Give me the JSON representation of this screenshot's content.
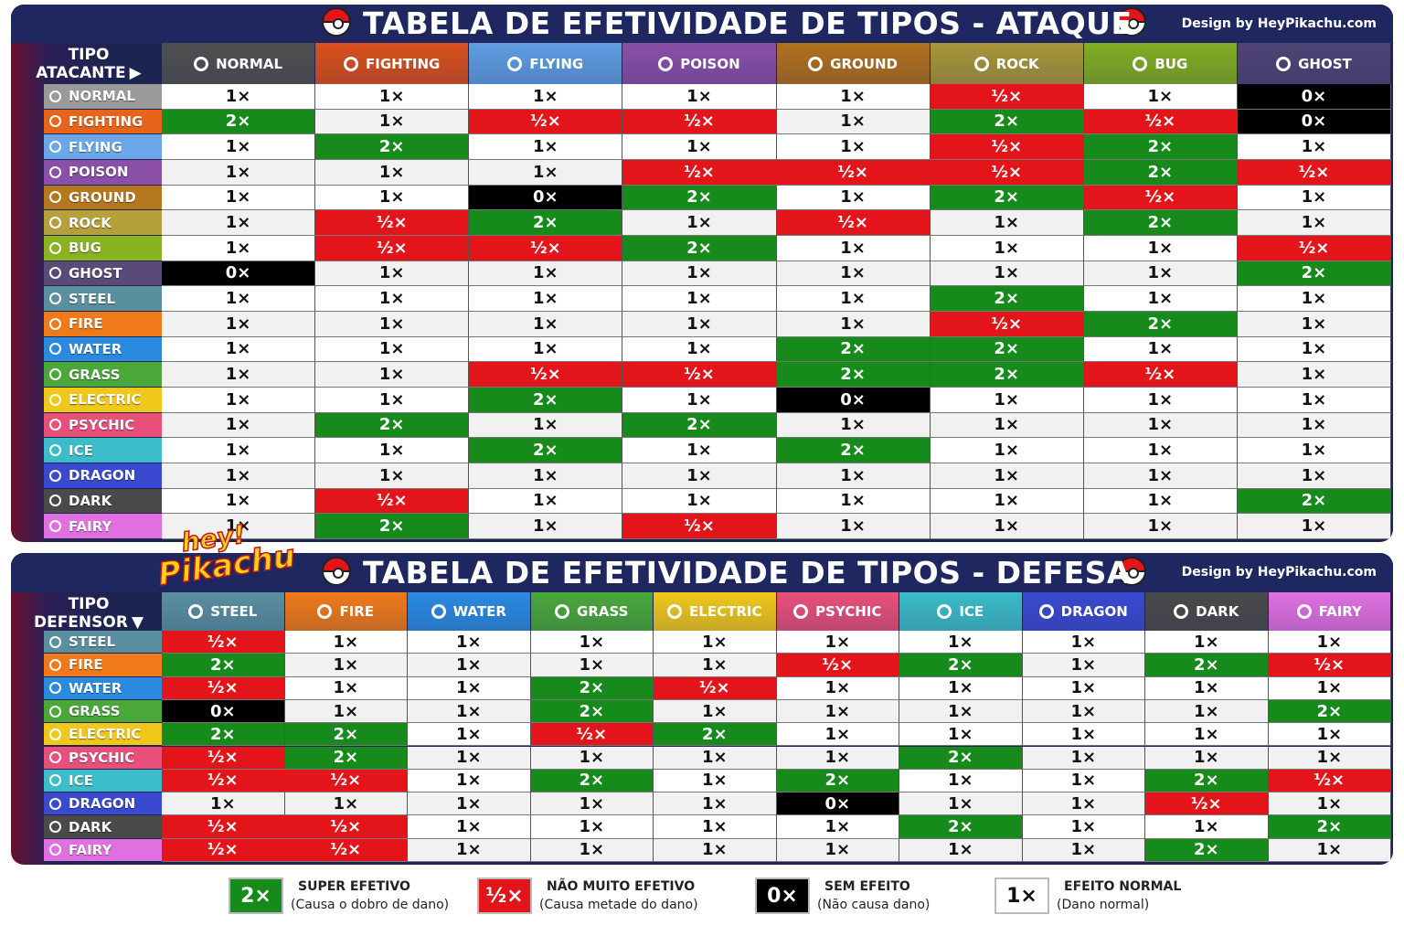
{
  "top": {
    "title": "TABELA DE EFETIVIDADE DE TIPOS - ATAQUE",
    "credit": "Design by HeyPikachu.com",
    "corner": [
      "TIPO",
      "ATACANTE"
    ],
    "columns": [
      {
        "label": "NORMAL",
        "color": "#505050"
      },
      {
        "label": "FIGHTING",
        "color": "#d9501c"
      },
      {
        "label": "FLYING",
        "color": "#5f9de0"
      },
      {
        "label": "POISON",
        "color": "#8a4fa8"
      },
      {
        "label": "GROUND",
        "color": "#b0701e"
      },
      {
        "label": "ROCK",
        "color": "#a8963a"
      },
      {
        "label": "BUG",
        "color": "#82ad22"
      },
      {
        "label": "GHOST",
        "color": "#4e4474"
      }
    ],
    "rows": [
      {
        "label": "NORMAL",
        "color": "#9a9a9a",
        "cells": [
          "1×",
          "1×",
          "1×",
          "1×",
          "1×",
          "½×",
          "1×",
          "0×"
        ]
      },
      {
        "label": "FIGHTING",
        "color": "#e8641a",
        "cells": [
          "2×",
          "1×",
          "½×",
          "½×",
          "1×",
          "2×",
          "½×",
          "0×"
        ]
      },
      {
        "label": "FLYING",
        "color": "#6aa6e8",
        "cells": [
          "1×",
          "2×",
          "1×",
          "1×",
          "1×",
          "½×",
          "2×",
          "1×"
        ]
      },
      {
        "label": "POISON",
        "color": "#8a4fa8",
        "cells": [
          "1×",
          "1×",
          "1×",
          "½×",
          "½×",
          "½×",
          "2×",
          "½×"
        ]
      },
      {
        "label": "GROUND",
        "color": "#b5781e",
        "cells": [
          "1×",
          "1×",
          "0×",
          "2×",
          "1×",
          "2×",
          "½×",
          "1×"
        ]
      },
      {
        "label": "ROCK",
        "color": "#b5a03c",
        "cells": [
          "1×",
          "½×",
          "2×",
          "1×",
          "½×",
          "1×",
          "2×",
          "1×"
        ]
      },
      {
        "label": "BUG",
        "color": "#8ab320",
        "cells": [
          "1×",
          "½×",
          "½×",
          "2×",
          "1×",
          "1×",
          "1×",
          "½×"
        ]
      },
      {
        "label": "GHOST",
        "color": "#5a4a7a",
        "cells": [
          "0×",
          "1×",
          "1×",
          "1×",
          "1×",
          "1×",
          "1×",
          "2×"
        ]
      },
      {
        "label": "STEEL",
        "color": "#5a8fa0",
        "cells": [
          "1×",
          "1×",
          "1×",
          "1×",
          "1×",
          "2×",
          "1×",
          "1×"
        ]
      },
      {
        "label": "FIRE",
        "color": "#f07a1a",
        "cells": [
          "1×",
          "1×",
          "1×",
          "1×",
          "1×",
          "½×",
          "2×",
          "1×"
        ]
      },
      {
        "label": "WATER",
        "color": "#2a8ae0",
        "cells": [
          "1×",
          "1×",
          "1×",
          "1×",
          "2×",
          "2×",
          "1×",
          "1×"
        ]
      },
      {
        "label": "GRASS",
        "color": "#4aa83a",
        "cells": [
          "1×",
          "1×",
          "½×",
          "½×",
          "2×",
          "2×",
          "½×",
          "1×"
        ]
      },
      {
        "label": "ELECTRIC",
        "color": "#f0c81a",
        "cells": [
          "1×",
          "1×",
          "2×",
          "1×",
          "0×",
          "1×",
          "1×",
          "1×"
        ]
      },
      {
        "label": "PSYCHIC",
        "color": "#e8507a",
        "cells": [
          "1×",
          "2×",
          "1×",
          "2×",
          "1×",
          "1×",
          "1×",
          "1×"
        ]
      },
      {
        "label": "ICE",
        "color": "#3cbcc8",
        "cells": [
          "1×",
          "1×",
          "2×",
          "1×",
          "2×",
          "1×",
          "1×",
          "1×"
        ]
      },
      {
        "label": "DRAGON",
        "color": "#3a4ad0",
        "cells": [
          "1×",
          "1×",
          "1×",
          "1×",
          "1×",
          "1×",
          "1×",
          "1×"
        ]
      },
      {
        "label": "DARK",
        "color": "#4a4a4a",
        "cells": [
          "1×",
          "½×",
          "1×",
          "1×",
          "1×",
          "1×",
          "1×",
          "2×"
        ]
      },
      {
        "label": "FAIRY",
        "color": "#e070e0",
        "cells": [
          "1×",
          "2×",
          "1×",
          "½×",
          "1×",
          "1×",
          "1×",
          "1×"
        ]
      }
    ]
  },
  "bottom": {
    "title": "TABELA DE EFETIVIDADE DE TIPOS - DEFESA",
    "credit": "Design by HeyPikachu.com",
    "corner": [
      "TIPO",
      "DEFENSOR"
    ],
    "columns": [
      {
        "label": "STEEL",
        "color": "#5a8fa0"
      },
      {
        "label": "FIRE",
        "color": "#f07a1a"
      },
      {
        "label": "WATER",
        "color": "#2a8ae0"
      },
      {
        "label": "GRASS",
        "color": "#4aa83a"
      },
      {
        "label": "ELECTRIC",
        "color": "#f0c81a"
      },
      {
        "label": "PSYCHIC",
        "color": "#e8507a"
      },
      {
        "label": "ICE",
        "color": "#3cbcc8"
      },
      {
        "label": "DRAGON",
        "color": "#3a4ad0"
      },
      {
        "label": "DARK",
        "color": "#4a4a4a"
      },
      {
        "label": "FAIRY",
        "color": "#e070e0"
      }
    ],
    "rows": [
      {
        "label": "STEEL",
        "color": "#5a8fa0",
        "cells": [
          "½×",
          "1×",
          "1×",
          "1×",
          "1×",
          "1×",
          "1×",
          "1×",
          "1×",
          "1×"
        ]
      },
      {
        "label": "FIRE",
        "color": "#f07a1a",
        "cells": [
          "2×",
          "1×",
          "1×",
          "1×",
          "1×",
          "½×",
          "2×",
          "1×",
          "2×",
          "½×"
        ]
      },
      {
        "label": "WATER",
        "color": "#2a8ae0",
        "cells": [
          "½×",
          "1×",
          "1×",
          "2×",
          "½×",
          "1×",
          "1×",
          "1×",
          "1×",
          "1×"
        ]
      },
      {
        "label": "GRASS",
        "color": "#4aa83a",
        "cells": [
          "0×",
          "1×",
          "1×",
          "2×",
          "1×",
          "1×",
          "1×",
          "1×",
          "1×",
          "2×"
        ]
      },
      {
        "label": "ELECTRIC",
        "color": "#f0c81a",
        "cells": [
          "2×",
          "2×",
          "1×",
          "½×",
          "2×",
          "1×",
          "1×",
          "1×",
          "1×",
          "1×"
        ]
      },
      {
        "label": "PSYCHIC",
        "color": "#e8507a",
        "cells": [
          "½×",
          "2×",
          "1×",
          "1×",
          "1×",
          "1×",
          "2×",
          "1×",
          "1×",
          "1×"
        ]
      },
      {
        "label": "ICE",
        "color": "#3cbcc8",
        "cells": [
          "½×",
          "½×",
          "1×",
          "2×",
          "1×",
          "2×",
          "1×",
          "1×",
          "2×",
          "½×"
        ]
      },
      {
        "label": "DRAGON",
        "color": "#3a4ad0",
        "cells": [
          "1×",
          "1×",
          "1×",
          "1×",
          "1×",
          "0×",
          "1×",
          "1×",
          "½×",
          "1×"
        ]
      },
      {
        "label": "DARK",
        "color": "#4a4a4a",
        "cells": [
          "½×",
          "½×",
          "1×",
          "1×",
          "1×",
          "1×",
          "2×",
          "1×",
          "1×",
          "2×"
        ]
      },
      {
        "label": "FAIRY",
        "color": "#e070e0",
        "cells": [
          "½×",
          "½×",
          "1×",
          "1×",
          "1×",
          "1×",
          "1×",
          "1×",
          "2×",
          "1×"
        ]
      }
    ]
  },
  "logo": [
    "hey!",
    "Pikachu"
  ],
  "legend": [
    {
      "symbol": "2×",
      "title": "SUPER EFETIVO",
      "desc": "(Causa o dobro de dano)",
      "color": "#178a1c",
      "text_color": "#ffffff"
    },
    {
      "symbol": "½×",
      "title": "NÃO MUITO EFETIVO",
      "desc": "(Causa metade do dano)",
      "color": "#e3141a",
      "text_color": "#ffffff"
    },
    {
      "symbol": "0×",
      "title": "SEM EFEITO",
      "desc": "(Não causa dano)",
      "color": "#000000",
      "text_color": "#ffffff"
    },
    {
      "symbol": "1×",
      "title": "EFEITO NORMAL",
      "desc": "(Dano normal)",
      "color": "#ffffff",
      "text_color": "#111111"
    }
  ]
}
